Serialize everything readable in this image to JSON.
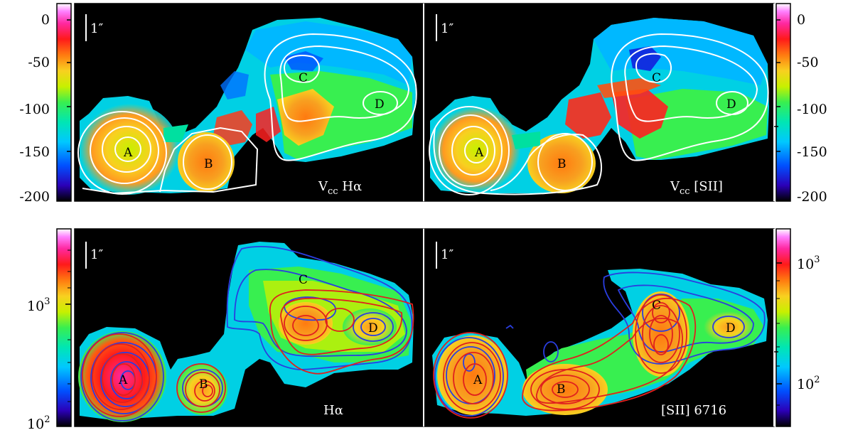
{
  "colors": {
    "background": "#000000",
    "frame": "#000000",
    "divider": "#ffffff",
    "contour_white": "#ffffff",
    "contour_red": "#e0201e",
    "contour_blue": "#2a3ee0",
    "palette": [
      "#000000",
      "#2b00b8",
      "#0050ff",
      "#00c8ff",
      "#00e6b4",
      "#38ef50",
      "#c8f000",
      "#f8d020",
      "#ff7a10",
      "#ff1a1a",
      "#ff28a0",
      "#ff80ff",
      "#ffffff"
    ]
  },
  "top_row": {
    "left_panel": {
      "scale_bar_label": "1″",
      "corner_label_main": "V",
      "corner_label_sub": "cc",
      "corner_label_tail": " Hα",
      "sources": [
        "A",
        "B",
        "C",
        "D"
      ],
      "colorbar_side": "left"
    },
    "right_panel": {
      "scale_bar_label": "1″",
      "corner_label_main": "V",
      "corner_label_sub": "cc",
      "corner_label_tail": " [SII]",
      "sources": [
        "A",
        "B",
        "C",
        "D"
      ],
      "colorbar_side": "right"
    },
    "colorbar": {
      "ticks": [
        "0",
        "-50",
        "-100",
        "-150",
        "-200"
      ],
      "scale": "linear",
      "range": [
        -200,
        10
      ]
    }
  },
  "bottom_row": {
    "left_panel": {
      "scale_bar_label": "1″",
      "corner_label": "Hα",
      "sources": [
        "A",
        "B",
        "C",
        "D"
      ],
      "colorbar_side": "left"
    },
    "right_panel": {
      "scale_bar_label": "1″",
      "corner_label": "[SII] 6716",
      "sources": [
        "A",
        "B",
        "C",
        "D"
      ],
      "colorbar_side": "right"
    },
    "colorbar": {
      "left_ticks_base": [
        "10",
        "10",
        "10"
      ],
      "left_ticks_exp": [
        "3",
        "2"
      ],
      "right_ticks_base": [
        "10",
        "10"
      ],
      "right_ticks_exp": [
        "3",
        "2"
      ],
      "scale": "log"
    }
  }
}
